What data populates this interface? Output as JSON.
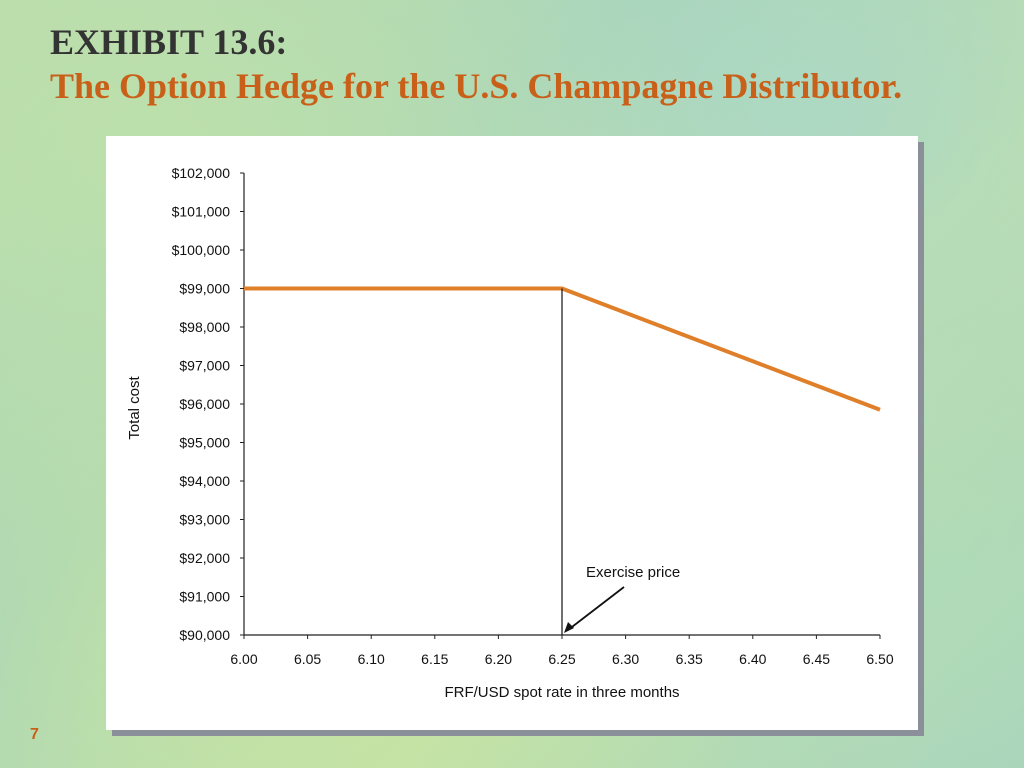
{
  "slide": {
    "exhibit_label": "EXHIBIT 13.6:",
    "title": "The Option Hedge for the U.S. Champagne Distributor.",
    "page_number": "7"
  },
  "colors": {
    "title_accent": "#c8601a",
    "line": "#e07f2a",
    "background": "#b9dcae"
  },
  "chart_data": {
    "type": "line",
    "title": "",
    "xlabel": "FRF/USD spot rate in three months",
    "ylabel": "Total cost",
    "x_ticks": [
      "6.00",
      "6.05",
      "6.10",
      "6.15",
      "6.20",
      "6.25",
      "6.30",
      "6.35",
      "6.40",
      "6.45",
      "6.50"
    ],
    "y_ticks": [
      "$90,000",
      "$91,000",
      "$92,000",
      "$93,000",
      "$94,000",
      "$95,000",
      "$96,000",
      "$97,000",
      "$98,000",
      "$99,000",
      "$100,000",
      "$101,000",
      "$102,000"
    ],
    "xlim": [
      6.0,
      6.5
    ],
    "ylim": [
      90000,
      102000
    ],
    "series": [
      {
        "x": [
          6.0,
          6.25,
          6.5
        ],
        "y": [
          99000,
          99000,
          95850
        ]
      }
    ],
    "annotation": {
      "text": "Exercise price",
      "x": 6.25
    },
    "grid": false
  }
}
